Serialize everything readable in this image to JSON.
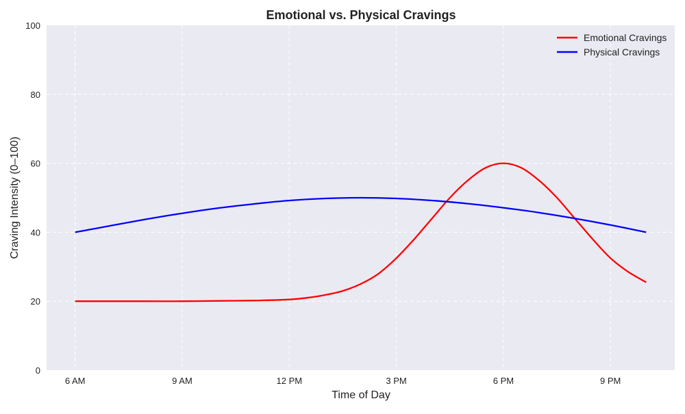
{
  "chart_data": {
    "type": "line",
    "title": "Emotional vs. Physical Cravings",
    "xlabel": "Time of Day",
    "ylabel": "Craving Intensity (0–100)",
    "xlim": [
      5.2,
      22.8
    ],
    "ylim": [
      0,
      100
    ],
    "x_ticks": [
      6,
      9,
      12,
      15,
      18,
      21
    ],
    "x_tick_labels": [
      "6 AM",
      "9 AM",
      "12 PM",
      "3 PM",
      "6 PM",
      "9 PM"
    ],
    "y_ticks": [
      0,
      20,
      40,
      60,
      80,
      100
    ],
    "y_tick_labels": [
      "0",
      "20",
      "40",
      "60",
      "80",
      "100"
    ],
    "grid": true,
    "legend_position": "top-right",
    "series": [
      {
        "name": "Emotional Cravings",
        "color": "#ff0000",
        "x": [
          6,
          7,
          8,
          9,
          10,
          11,
          12,
          12.5,
          13,
          13.5,
          14,
          14.5,
          15,
          15.5,
          16,
          16.5,
          17,
          17.5,
          18,
          18.5,
          19,
          19.5,
          20,
          20.5,
          21,
          21.5,
          22
        ],
        "values": [
          20,
          20,
          20,
          20,
          20.1,
          20.2,
          20.5,
          21,
          21.8,
          23,
          25,
          28,
          32.5,
          38,
          44,
          50,
          55,
          58.7,
          60,
          58.7,
          55,
          50,
          44,
          38,
          32.5,
          28.5,
          25.5
        ]
      },
      {
        "name": "Physical Cravings",
        "color": "#0000ff",
        "x": [
          6,
          7,
          8,
          9,
          10,
          11,
          12,
          13,
          14,
          15,
          16,
          17,
          18,
          19,
          20,
          21,
          22
        ],
        "values": [
          40,
          41.9,
          43.8,
          45.5,
          47,
          48.2,
          49.2,
          49.8,
          50,
          49.8,
          49.2,
          48.3,
          47.1,
          45.7,
          44,
          42.1,
          40
        ]
      }
    ]
  }
}
